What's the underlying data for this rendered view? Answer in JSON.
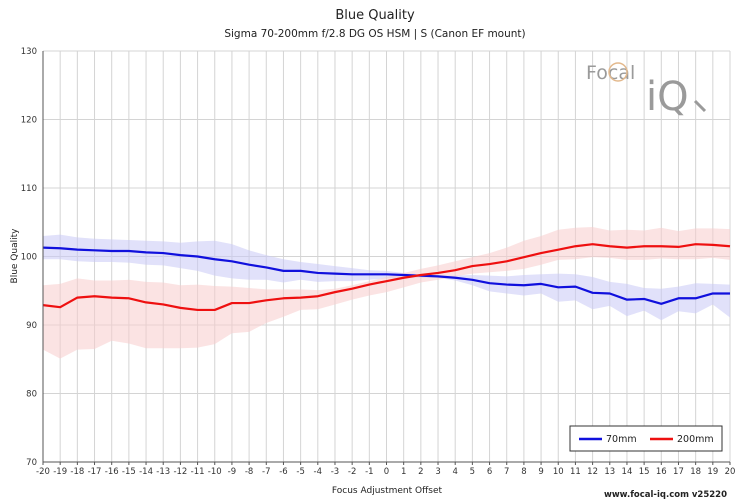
{
  "chart_data": {
    "type": "line",
    "title": "Blue Quality",
    "subtitle": "Sigma 70-200mm f/2.8 DG OS HSM | S (Canon EF mount)",
    "xlabel": "Focus Adjustment Offset",
    "ylabel": "Blue Quality",
    "xlim": [
      -20,
      20
    ],
    "ylim": [
      70,
      130
    ],
    "xticks": [
      "-20",
      "-19",
      "-18",
      "-17",
      "-16",
      "-15",
      "-14",
      "-13",
      "-12",
      "-11",
      "-10",
      "-9",
      "-8",
      "-7",
      "-6",
      "-5",
      "-4",
      "-3",
      "-2",
      "-1",
      "0",
      "1",
      "2",
      "3",
      "4",
      "5",
      "6",
      "7",
      "8",
      "9",
      "10",
      "11",
      "12",
      "13",
      "14",
      "15",
      "16",
      "17",
      "18",
      "19",
      "20"
    ],
    "yticks": [
      "70",
      "80",
      "90",
      "100",
      "110",
      "120",
      "130"
    ],
    "grid": true,
    "legend_position": "bottom-right",
    "x": [
      -20,
      -19,
      -18,
      -17,
      -16,
      -15,
      -14,
      -13,
      -12,
      -11,
      -10,
      -9,
      -8,
      -7,
      -6,
      -5,
      -4,
      -3,
      -2,
      -1,
      0,
      1,
      2,
      3,
      4,
      5,
      6,
      7,
      8,
      9,
      10,
      11,
      12,
      13,
      14,
      15,
      16,
      17,
      18,
      19,
      20
    ],
    "series": [
      {
        "name": "70mm",
        "color": "#1010dd",
        "band_color": "#c8c8f5",
        "values": [
          101.3,
          101.2,
          101.0,
          100.9,
          100.8,
          100.8,
          100.6,
          100.5,
          100.2,
          100.0,
          99.6,
          99.3,
          98.8,
          98.4,
          97.9,
          97.9,
          97.6,
          97.5,
          97.4,
          97.4,
          97.4,
          97.3,
          97.2,
          97.1,
          96.9,
          96.6,
          96.1,
          95.9,
          95.8,
          96.0,
          95.5,
          95.6,
          94.7,
          94.6,
          93.7,
          93.8,
          93.1,
          93.9,
          93.9,
          94.6,
          94.6
        ],
        "upper": [
          103.0,
          103.2,
          102.8,
          102.6,
          102.5,
          102.4,
          102.3,
          102.2,
          102.0,
          102.2,
          102.3,
          101.8,
          100.9,
          100.2,
          99.6,
          99.2,
          98.9,
          98.6,
          98.3,
          98.0,
          97.9,
          97.6,
          97.4,
          97.2,
          97.2,
          97.3,
          97.2,
          97.1,
          97.3,
          97.4,
          97.5,
          97.4,
          97.0,
          96.3,
          96.0,
          95.4,
          95.3,
          95.6,
          96.1,
          96.0,
          95.9
        ],
        "lower": [
          99.6,
          99.6,
          99.3,
          99.2,
          99.2,
          99.1,
          98.8,
          98.7,
          98.3,
          97.9,
          97.2,
          96.8,
          96.6,
          96.6,
          96.2,
          96.6,
          96.3,
          96.4,
          96.4,
          96.6,
          96.8,
          96.9,
          96.9,
          96.9,
          96.5,
          95.8,
          94.9,
          94.6,
          94.3,
          94.6,
          93.4,
          93.6,
          92.3,
          92.8,
          91.3,
          92.1,
          90.7,
          92.0,
          91.7,
          93.0,
          91.1
        ]
      },
      {
        "name": "200mm",
        "color": "#ee1010",
        "band_color": "#f7cccc",
        "values": [
          92.9,
          92.6,
          94.0,
          94.2,
          94.0,
          93.9,
          93.3,
          93.0,
          92.5,
          92.2,
          92.2,
          93.2,
          93.2,
          93.6,
          93.9,
          94.0,
          94.2,
          94.8,
          95.3,
          95.9,
          96.4,
          96.9,
          97.3,
          97.6,
          98.0,
          98.6,
          98.9,
          99.3,
          99.9,
          100.5,
          101.0,
          101.5,
          101.8,
          101.5,
          101.3,
          101.5,
          101.5,
          101.4,
          101.8,
          101.7,
          101.5
        ],
        "upper": [
          95.8,
          96.0,
          96.8,
          96.5,
          96.5,
          96.6,
          96.3,
          96.2,
          95.8,
          95.9,
          95.7,
          95.6,
          95.4,
          95.2,
          95.2,
          95.2,
          95.1,
          95.3,
          95.8,
          96.4,
          97.0,
          97.6,
          98.2,
          98.7,
          99.3,
          99.9,
          100.5,
          101.3,
          102.3,
          103.0,
          103.9,
          104.2,
          104.3,
          103.8,
          103.9,
          103.8,
          104.2,
          103.7,
          104.1,
          104.1,
          104.0
        ],
        "lower": [
          86.4,
          85.1,
          86.4,
          86.5,
          87.7,
          87.3,
          86.6,
          86.6,
          86.6,
          86.7,
          87.2,
          88.8,
          89.0,
          90.3,
          91.2,
          92.2,
          92.3,
          93.0,
          93.7,
          94.3,
          94.8,
          95.5,
          96.2,
          96.6,
          97.1,
          97.5,
          97.7,
          97.9,
          98.2,
          98.8,
          99.5,
          99.6,
          99.9,
          99.8,
          99.5,
          99.5,
          99.7,
          99.6,
          99.6,
          99.8,
          99.5
        ]
      }
    ]
  },
  "branding": {
    "logo_line1": "Focal",
    "logo_line2": "iQ",
    "footer": "www.focal-iq.com  v25220"
  },
  "colors": {
    "grid": "#d4d4d4",
    "axis": "#555555",
    "logo_ring": "#e3b98d"
  }
}
